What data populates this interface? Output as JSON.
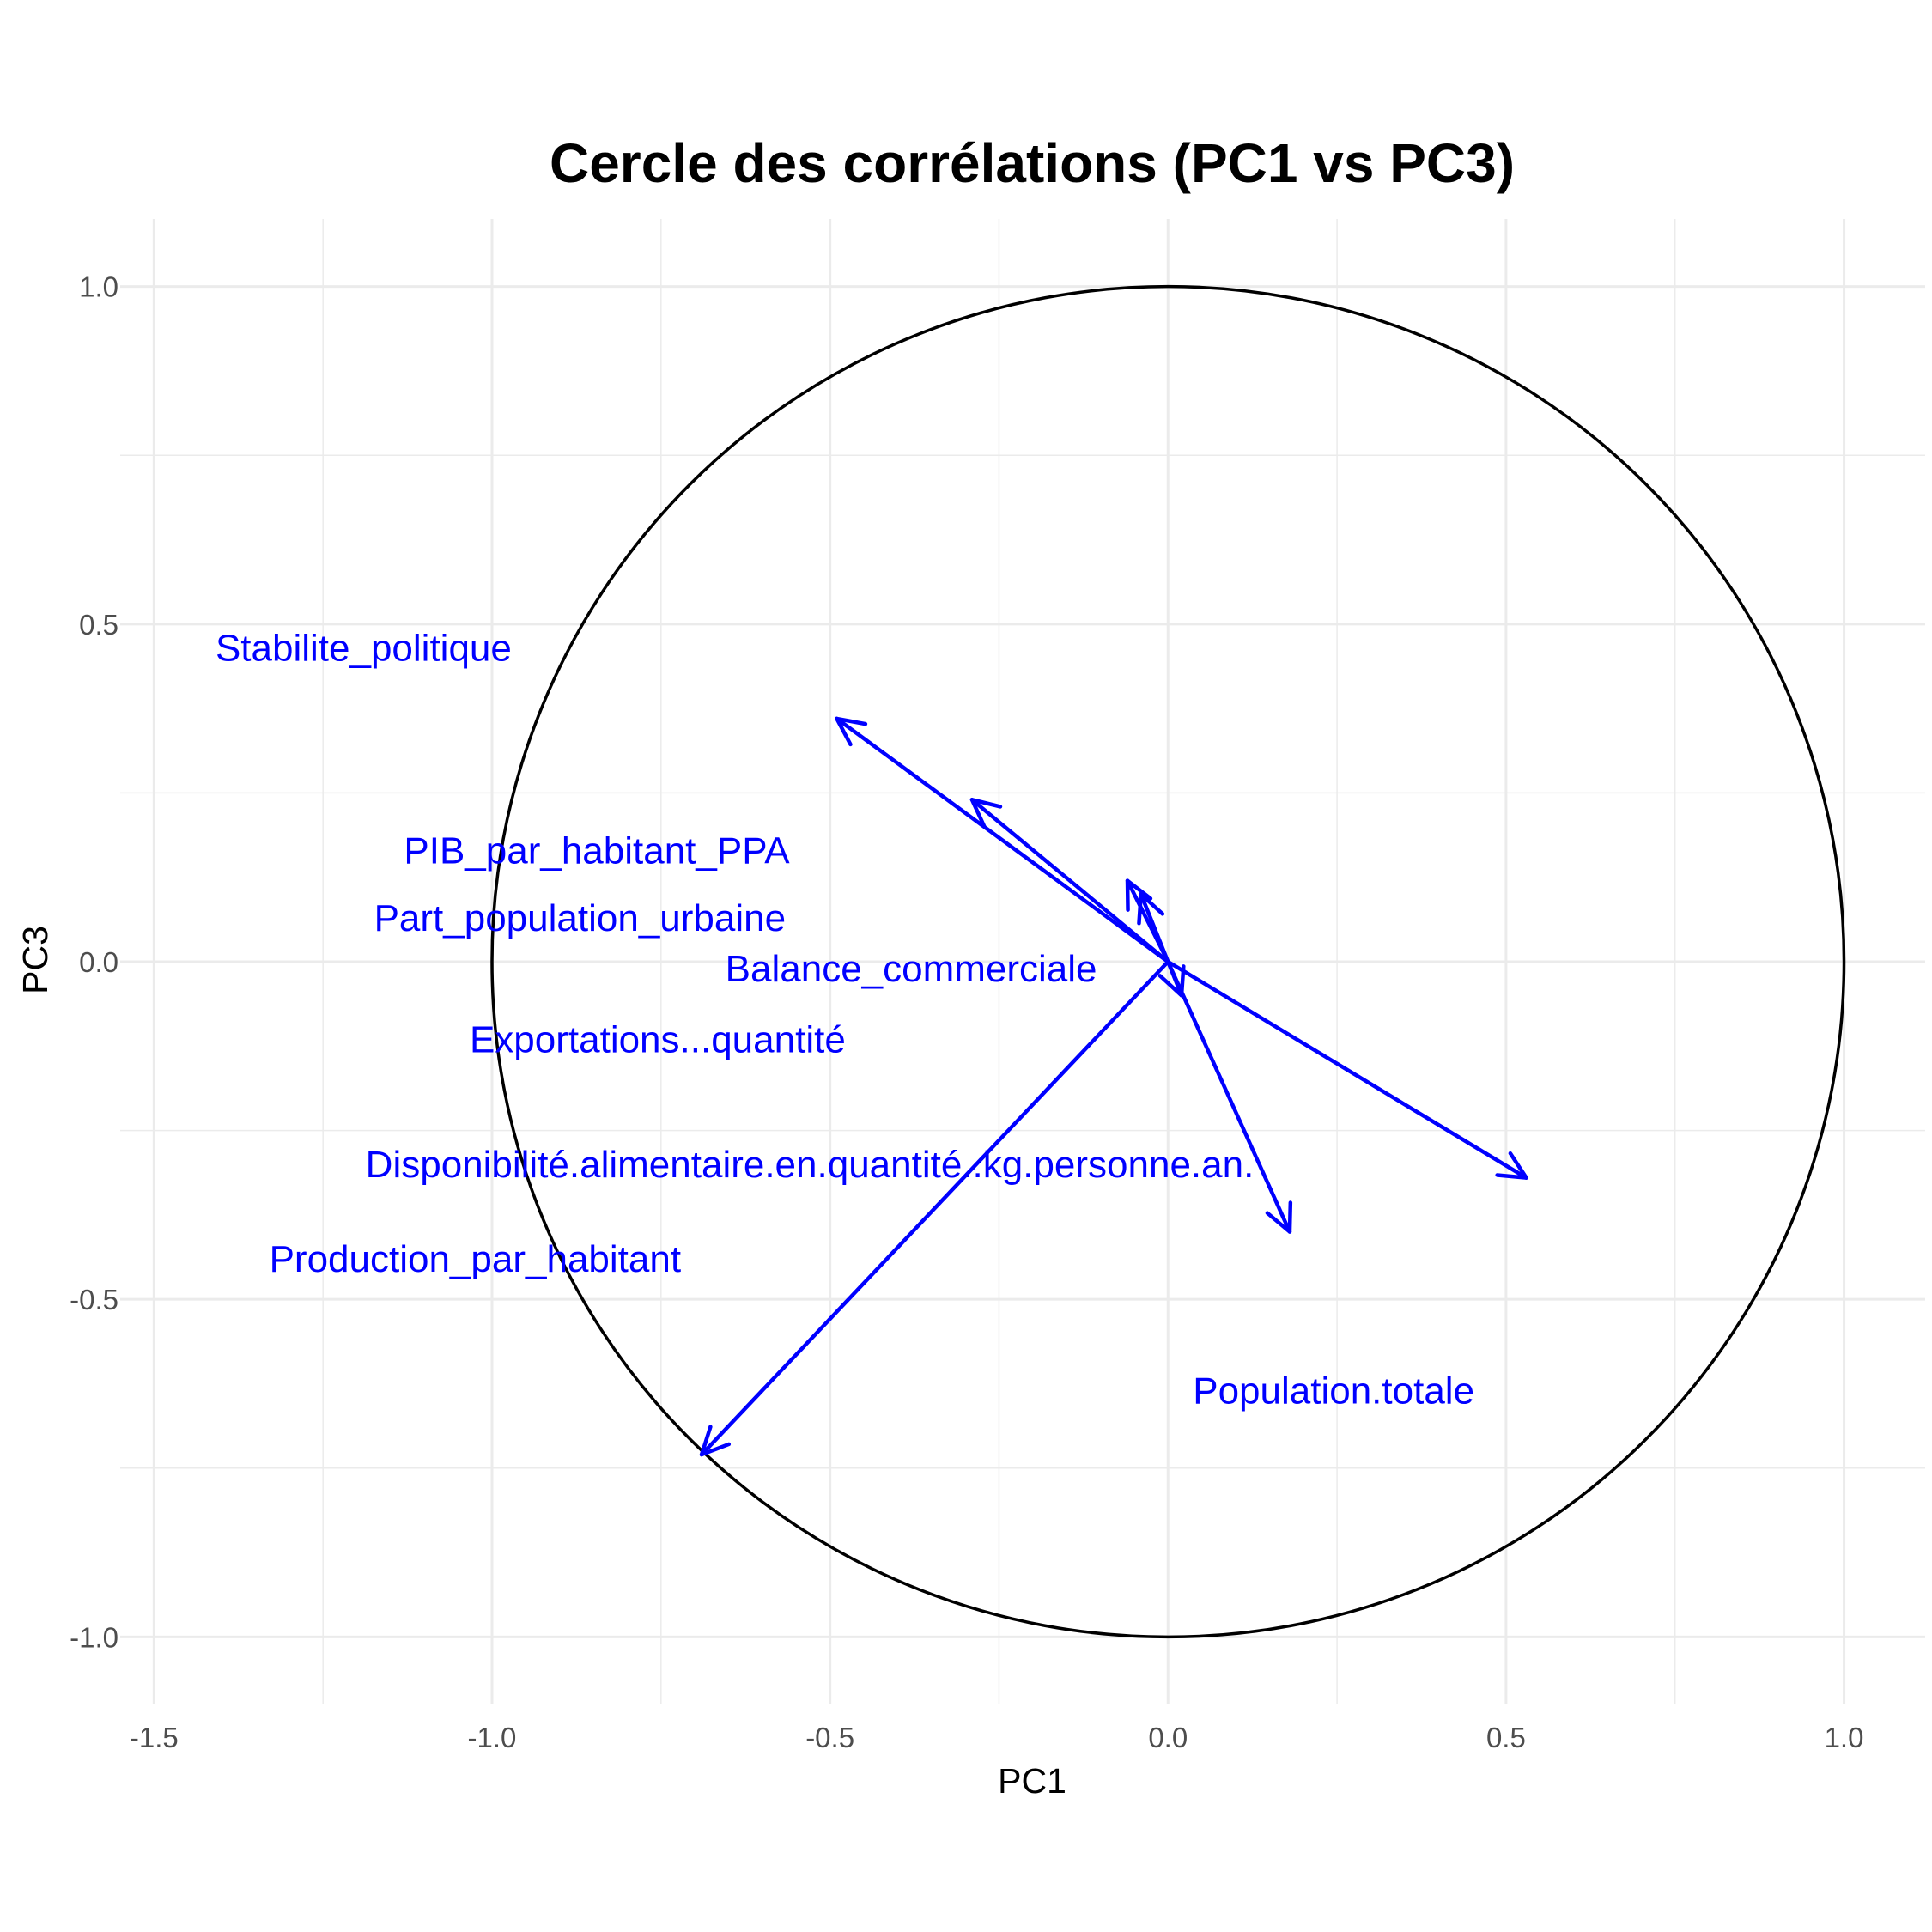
{
  "chart_data": {
    "type": "scatter",
    "title": "Cercle des corrélations (PC1 vs PC3)",
    "xlabel": "PC1",
    "ylabel": "PC3",
    "xlim": [
      -1.55,
      1.12
    ],
    "ylim": [
      -1.1,
      1.1
    ],
    "x_ticks": [
      -1.5,
      -1.0,
      -0.5,
      0.0,
      0.5,
      1.0
    ],
    "x_tick_labels": [
      "-1.5",
      "-1.0",
      "-0.5",
      "0.0",
      "0.5",
      "1.0"
    ],
    "y_ticks": [
      -1.0,
      -0.5,
      0.0,
      0.5,
      1.0
    ],
    "y_tick_labels": [
      "-1.0",
      "-0.5",
      "0.0",
      "0.5",
      "1.0"
    ],
    "x_minor_ticks": [
      -1.25,
      -0.75,
      -0.25,
      0.25,
      0.75
    ],
    "y_minor_ticks": [
      -0.75,
      -0.25,
      0.25,
      0.75
    ],
    "grid": true,
    "unit_circle": true,
    "arrow_color": "#0000ff",
    "label_color": "#0000ff",
    "arrows": [
      {
        "x": -0.49,
        "y": 0.36
      },
      {
        "x": -0.29,
        "y": 0.24
      },
      {
        "x": -0.06,
        "y": 0.12
      },
      {
        "x": -0.04,
        "y": 0.1
      },
      {
        "x": 0.02,
        "y": -0.05
      },
      {
        "x": 0.18,
        "y": -0.4
      },
      {
        "x": 0.53,
        "y": -0.32
      },
      {
        "x": -0.69,
        "y": -0.73
      }
    ],
    "labels": [
      {
        "text": "Stabilite_politique",
        "x": -1.19,
        "y": 0.465
      },
      {
        "text": "PIB_par_habitant_PPA",
        "x": -0.845,
        "y": 0.165
      },
      {
        "text": "Part_population_urbaine",
        "x": -0.87,
        "y": 0.065
      },
      {
        "text": "Balance_commerciale",
        "x": -0.38,
        "y": -0.01
      },
      {
        "text": "Exportations...quantité",
        "x": -0.755,
        "y": -0.115
      },
      {
        "text": "Disponibilité.alimentaire.en.quantité..kg.personne.an.",
        "x": -0.53,
        "y": -0.3
      },
      {
        "text": "Production_par_habitant",
        "x": -1.025,
        "y": -0.44
      },
      {
        "text": "Population.totale",
        "x": 0.245,
        "y": -0.635
      }
    ]
  }
}
